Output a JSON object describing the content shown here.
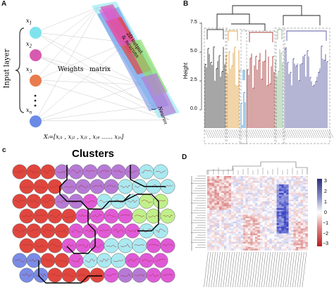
{
  "panels": {
    "a": {
      "label": "A",
      "layer_label": "Input  layer",
      "nodes": [
        {
          "sub": "1",
          "color": "#7fe3ee"
        },
        {
          "sub": "2",
          "color": "#d85ab0"
        },
        {
          "sub": "3",
          "color": "#e87c4e"
        },
        {
          "sub": "n",
          "color": "#6b8ae6"
        }
      ],
      "weights_label": "Weights   matrix",
      "output_label": "2D output",
      "neurons_label": "& neurons",
      "neuron_j": "Neuron j",
      "formula": "Xᵢ=[xⱼ₁ , xⱼ₂ , xⱼ₃ , xⱼ₄ …… xⱼₙ]"
    },
    "b": {
      "label": "B",
      "ylabel": "Height",
      "yticks": [
        "7.5",
        "5.0",
        "2.5",
        "0.0"
      ],
      "cluster_colors": [
        "#3a3a3a",
        "#e0a040",
        "#3a90d0",
        "#a83838",
        "#8ab88a",
        "#5a5aa0"
      ]
    },
    "c": {
      "label": "c",
      "title": "Clusters",
      "colors": {
        "red": "#e0463e",
        "purple": "#b67ad6",
        "blue": "#7a8ce6",
        "magenta": "#e05ad6",
        "cyan": "#a9e9f0",
        "green": "#c0f08a"
      }
    },
    "d": {
      "label": "D",
      "colorbar_ticks": [
        "3",
        "2",
        "1",
        "0",
        "−1",
        "−2",
        "−3"
      ]
    }
  }
}
